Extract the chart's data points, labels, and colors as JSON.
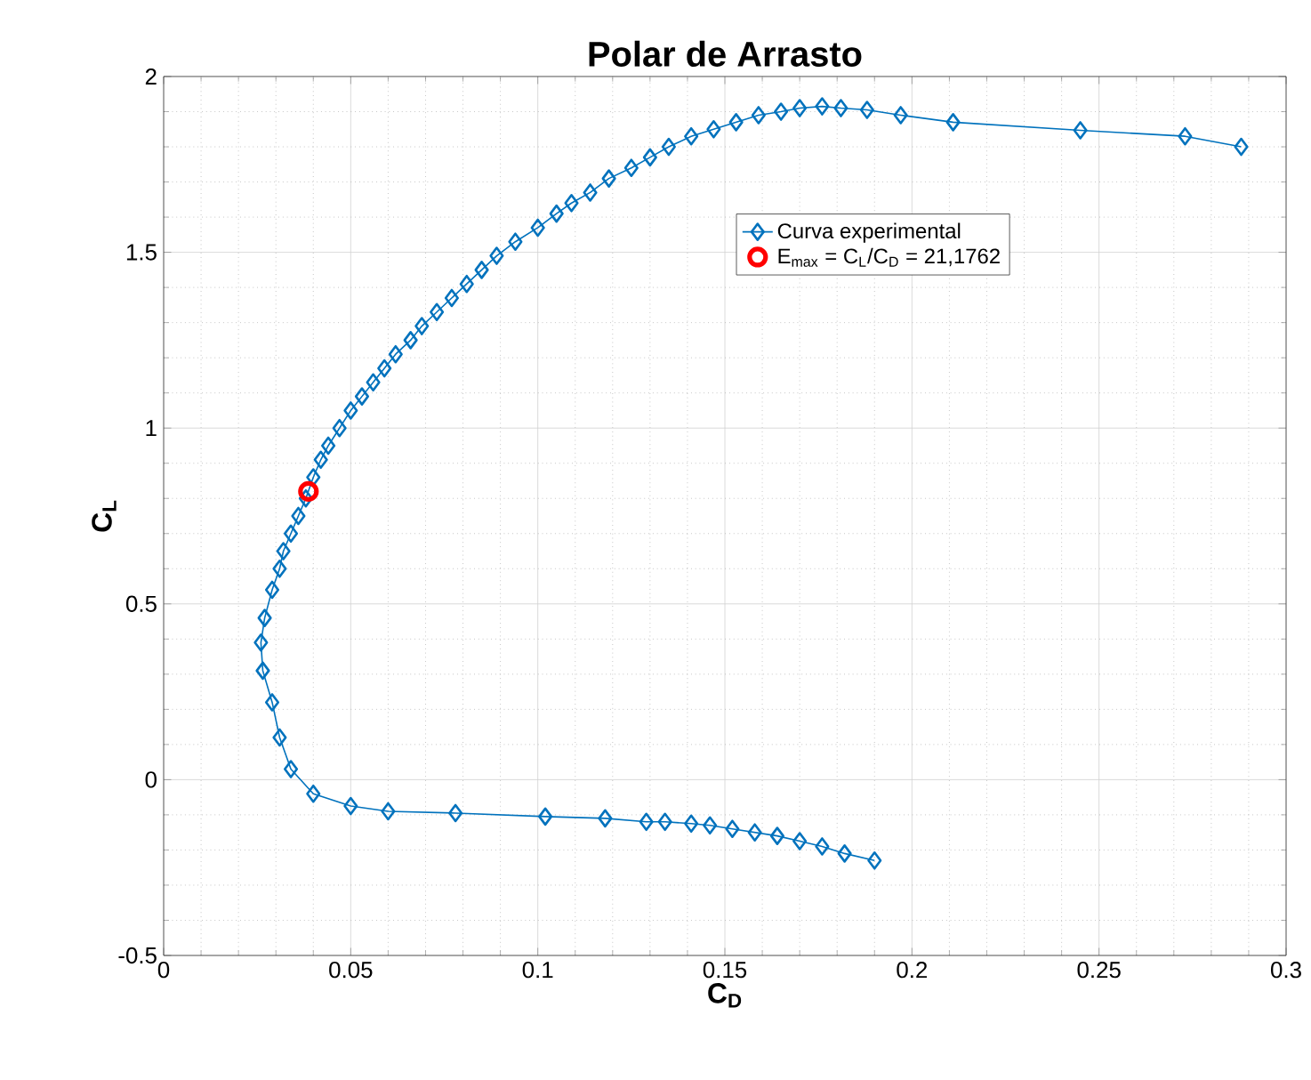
{
  "chart_data": {
    "type": "line",
    "title": "Polar de Arrasto",
    "xlabel": "C$_{D}$",
    "ylabel": "C$_{L}$",
    "xlim": [
      0,
      0.3
    ],
    "xticks": [
      0,
      0.05,
      0.1,
      0.15,
      0.2,
      0.25,
      0.3
    ],
    "ylim": [
      -0.5,
      2
    ],
    "yticks": [
      -0.5,
      0,
      0.5,
      1,
      1.5,
      2
    ],
    "grid": true,
    "legend": "top right",
    "series": [
      {
        "name": "Curva experimental",
        "marker": "diamond",
        "color": "#0072bd",
        "x": [
          0.19,
          0.182,
          0.176,
          0.17,
          0.164,
          0.158,
          0.152,
          0.146,
          0.141,
          0.134,
          0.129,
          0.118,
          0.102,
          0.078,
          0.06,
          0.05,
          0.04,
          0.034,
          0.031,
          0.029,
          0.0265,
          0.026,
          0.027,
          0.029,
          0.031,
          0.032,
          0.034,
          0.036,
          0.038,
          0.04,
          0.042,
          0.044,
          0.047,
          0.05,
          0.053,
          0.056,
          0.059,
          0.062,
          0.066,
          0.069,
          0.073,
          0.077,
          0.081,
          0.085,
          0.089,
          0.094,
          0.1,
          0.105,
          0.109,
          0.114,
          0.119,
          0.125,
          0.13,
          0.135,
          0.141,
          0.147,
          0.153,
          0.159,
          0.165,
          0.17,
          0.176,
          0.181,
          0.188,
          0.197,
          0.211,
          0.245,
          0.273,
          0.288
        ],
        "values": [
          -0.23,
          -0.21,
          -0.19,
          -0.175,
          -0.16,
          -0.15,
          -0.14,
          -0.13,
          -0.125,
          -0.12,
          -0.12,
          -0.11,
          -0.105,
          -0.095,
          -0.09,
          -0.075,
          -0.04,
          0.03,
          0.12,
          0.22,
          0.31,
          0.39,
          0.46,
          0.54,
          0.6,
          0.65,
          0.7,
          0.75,
          0.8,
          0.86,
          0.91,
          0.95,
          1.0,
          1.05,
          1.09,
          1.13,
          1.17,
          1.21,
          1.25,
          1.29,
          1.33,
          1.37,
          1.41,
          1.45,
          1.49,
          1.53,
          1.57,
          1.61,
          1.64,
          1.67,
          1.71,
          1.74,
          1.77,
          1.8,
          1.83,
          1.85,
          1.87,
          1.89,
          1.9,
          1.91,
          1.915,
          1.91,
          1.905,
          1.89,
          1.87,
          1.847,
          1.83,
          1.8
        ]
      },
      {
        "name": "E$_{max}$ = C$_{L}$/C$_{D}$ = 21,1762",
        "type": "scatter",
        "marker": "circle",
        "color": "#ff0000",
        "x": [
          0.0387
        ],
        "values": [
          0.82
        ]
      }
    ]
  }
}
